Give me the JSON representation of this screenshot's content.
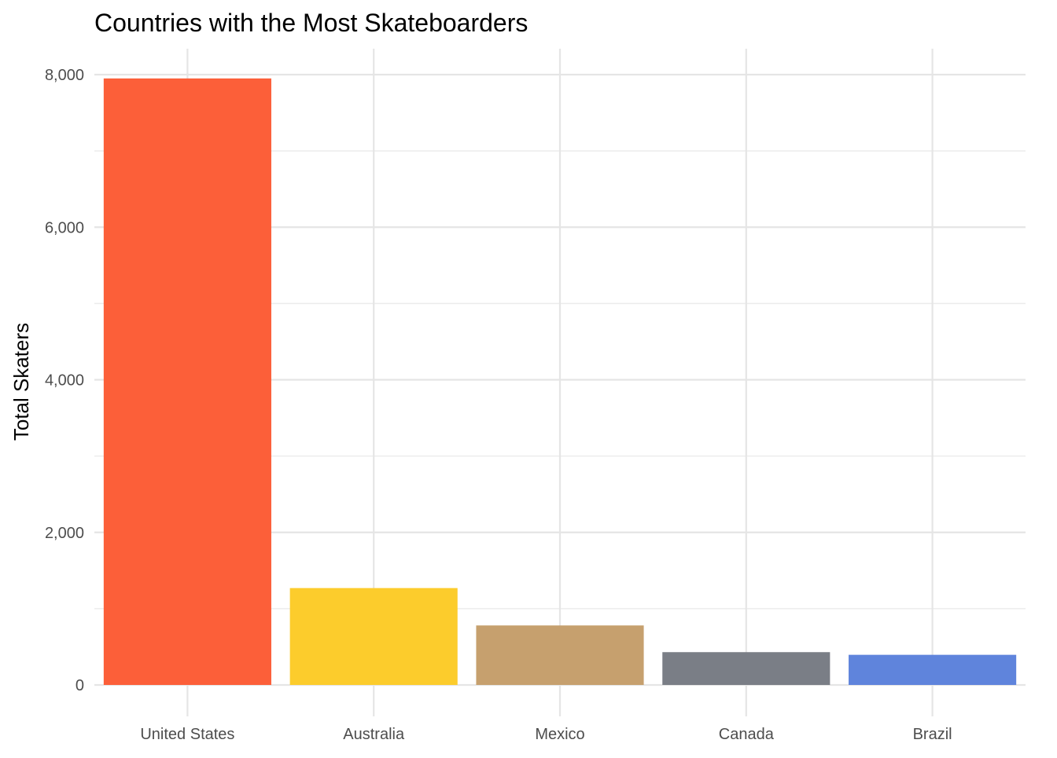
{
  "chart_data": {
    "type": "bar",
    "title": "Countries with the Most Skateboarders",
    "xlabel": "",
    "ylabel": "Total Skaters",
    "categories": [
      "United States",
      "Australia",
      "Mexico",
      "Canada",
      "Brazil"
    ],
    "values": [
      7950,
      1270,
      780,
      430,
      395
    ],
    "colors": [
      "#FC5F39",
      "#FCCC2C",
      "#C6A06E",
      "#7A7E86",
      "#5F84DC"
    ],
    "ylim": [
      0,
      8000
    ],
    "yticks": [
      0,
      2000,
      4000,
      6000,
      8000
    ],
    "ytick_labels": [
      "0",
      "2,000",
      "4,000",
      "6,000",
      "8,000"
    ],
    "grid": true,
    "legend": "none"
  }
}
